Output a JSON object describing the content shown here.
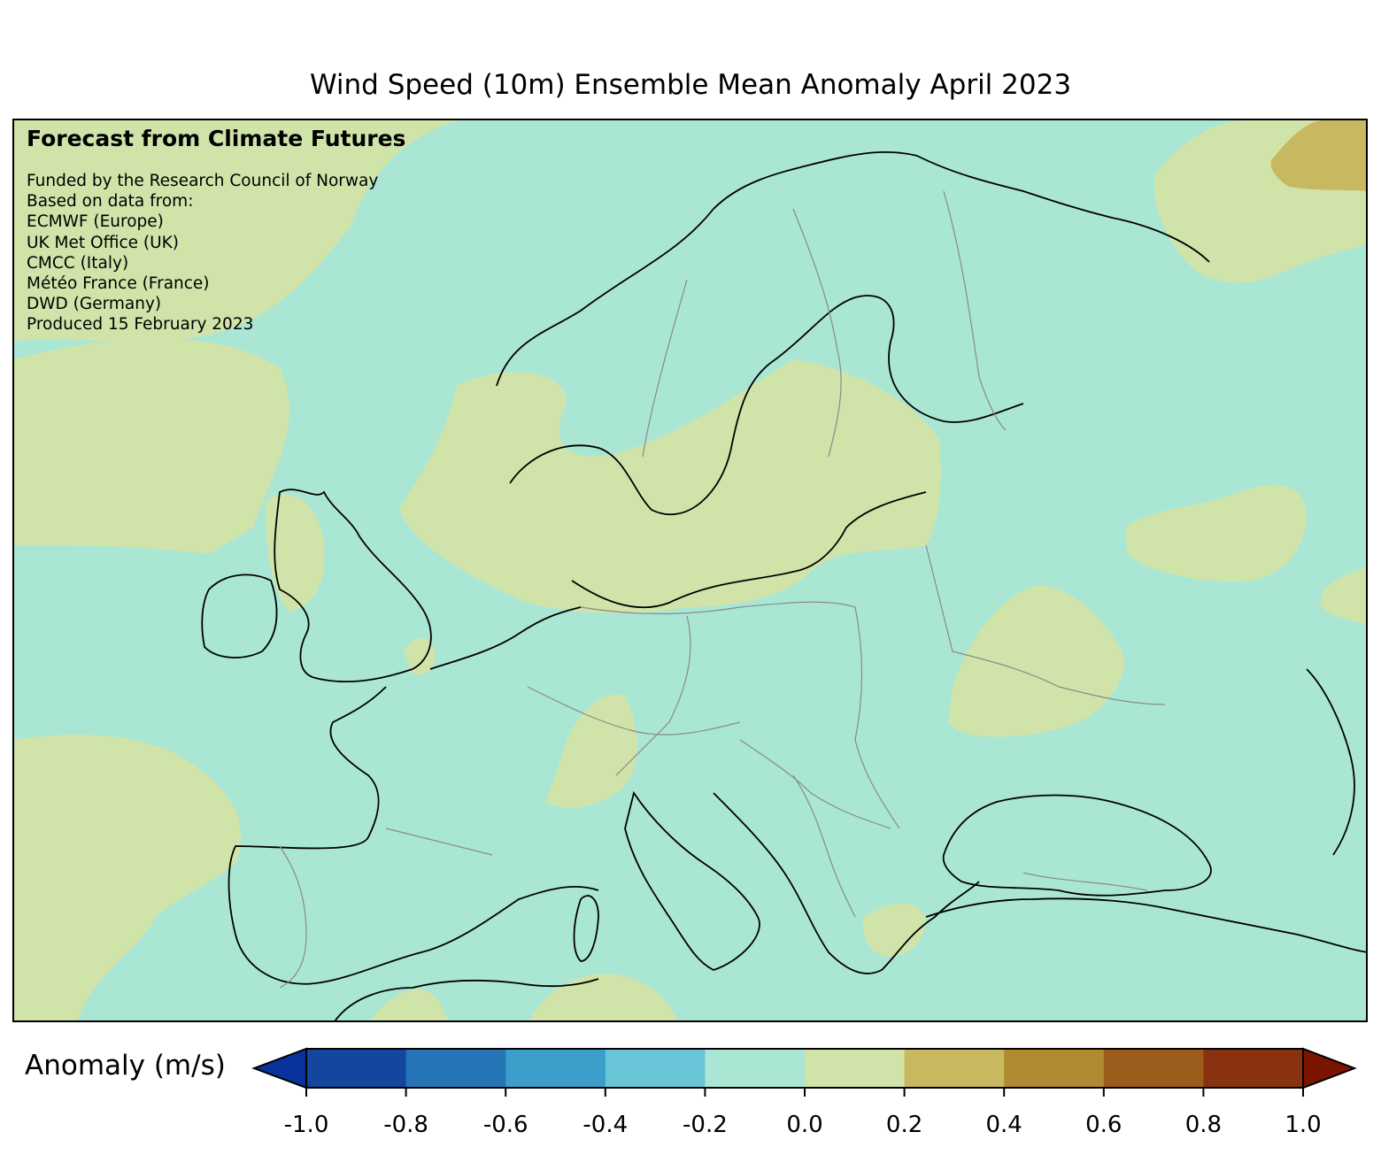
{
  "title": "Wind Speed (10m) Ensemble Mean Anomaly April 2023",
  "credit": {
    "heading": "Forecast from Climate Futures",
    "lines": [
      "Funded by the Research Council of Norway",
      "Based on data from:",
      "ECMWF (Europe)",
      "UK Met Office (UK)",
      "CMCC (Italy)",
      "Météo France (France)",
      "DWD (Germany)",
      "Produced 15 February 2023"
    ]
  },
  "colorbar": {
    "label": "Anomaly (m/s)",
    "ticks": [
      "-1.0",
      "-0.8",
      "-0.6",
      "-0.4",
      "-0.2",
      "0.0",
      "0.2",
      "0.4",
      "0.6",
      "0.8",
      "1.0"
    ],
    "under_color": "#08339a",
    "over_color": "#7a1500",
    "colors": [
      "#1446a0",
      "#2474b6",
      "#3a9dca",
      "#68c4d6",
      "#aae6d4",
      "#d0e4aa",
      "#c8b860",
      "#b08a30",
      "#9c5c1c",
      "#883210"
    ]
  },
  "map_legend": {
    "background_class": "-0.2 to 0.0",
    "highlight_class": "0.0 to 0.2",
    "strong_class": "0.2 to 0.4"
  }
}
